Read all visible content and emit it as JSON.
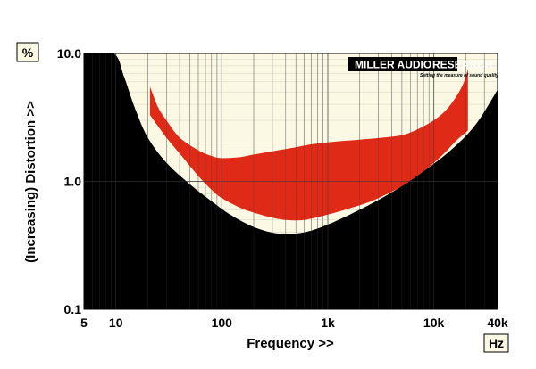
{
  "chart_data": {
    "type": "area",
    "title": "",
    "xlabel": "Frequency >>",
    "ylabel": "(Increasing) Distortion >>",
    "x_unit": "Hz",
    "y_unit": "%",
    "x_scale": "log",
    "y_scale": "log",
    "xlim": [
      5,
      40000
    ],
    "ylim": [
      0.1,
      10.0
    ],
    "x_tick_labels": [
      {
        "value": 5,
        "label": "5"
      },
      {
        "value": 10,
        "label": "10"
      },
      {
        "value": 100,
        "label": "100"
      },
      {
        "value": 1000,
        "label": "1k"
      },
      {
        "value": 10000,
        "label": "10k"
      },
      {
        "value": 40000,
        "label": "40k"
      }
    ],
    "y_tick_labels": [
      {
        "value": 0.1,
        "label": "0.1"
      },
      {
        "value": 1.0,
        "label": "1.0"
      },
      {
        "value": 10.0,
        "label": "10.0"
      }
    ],
    "grid": true,
    "colors": {
      "background": "#fbf8e3",
      "masking_floor": "#000000",
      "distortion_band": "#e02a18",
      "grid": "#9a9a9a"
    },
    "series": [
      {
        "key": "floor",
        "x": [
          5,
          9.5,
          12,
          15,
          20,
          30,
          50,
          80,
          120,
          200,
          350,
          600,
          1000,
          2000,
          4000,
          8000,
          15000,
          25000,
          40000
        ],
        "y": [
          10.0,
          10.0,
          6.5,
          3.8,
          2.2,
          1.4,
          0.95,
          0.7,
          0.55,
          0.44,
          0.39,
          0.4,
          0.46,
          0.6,
          0.82,
          1.2,
          1.8,
          2.8,
          5.2
        ]
      },
      {
        "key": "upper",
        "x": [
          21,
          25,
          30,
          40,
          60,
          80,
          100,
          150,
          200,
          300,
          500,
          700,
          1000,
          1500,
          2000,
          3000,
          5000,
          7000,
          10000,
          13000,
          16000,
          19000,
          21000
        ],
        "y": [
          5.5,
          3.8,
          3.0,
          2.2,
          1.75,
          1.58,
          1.52,
          1.55,
          1.62,
          1.72,
          1.85,
          1.95,
          2.02,
          2.08,
          2.12,
          2.18,
          2.3,
          2.55,
          3.0,
          3.6,
          4.5,
          5.8,
          7.5
        ]
      },
      {
        "key": "lower",
        "x": [
          21,
          30,
          40,
          60,
          80,
          100,
          150,
          200,
          300,
          400,
          600,
          1000,
          2000,
          3000,
          5000,
          8000,
          12000,
          16000,
          21000
        ],
        "y": [
          3.3,
          2.2,
          1.65,
          1.1,
          0.86,
          0.74,
          0.62,
          0.57,
          0.52,
          0.5,
          0.5,
          0.55,
          0.65,
          0.74,
          0.92,
          1.2,
          1.6,
          2.05,
          2.5
        ]
      }
    ]
  },
  "logo": {
    "main_left": "MILLER AUDIO",
    "main_right": "RESEARCH",
    "tagline": "Setting the measure of sound quality"
  }
}
